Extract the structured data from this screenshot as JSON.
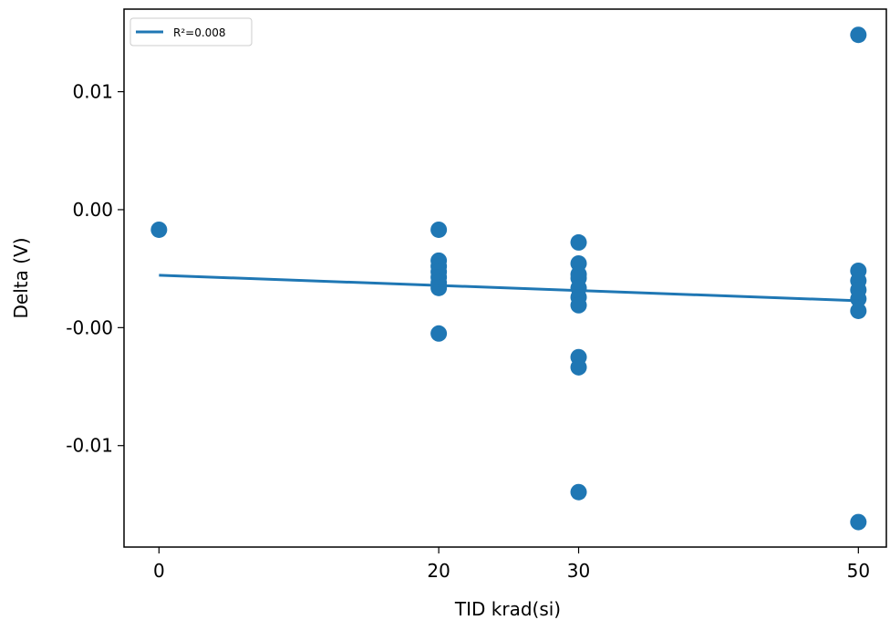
{
  "chart_data": {
    "type": "scatter",
    "xlabel": "TID krad(si)",
    "ylabel": "Delta (V)",
    "xlim": [
      -2.5,
      52
    ],
    "ylim": [
      -0.0143,
      0.0085
    ],
    "xticks": [
      0,
      20,
      30,
      50
    ],
    "yticks": [
      {
        "value": 0.005,
        "label": "0.01"
      },
      {
        "value": 0,
        "label": "0.00"
      },
      {
        "value": -0.005,
        "label": "-0.00"
      },
      {
        "value": -0.01,
        "label": "-0.01"
      }
    ],
    "points": {
      "color": "#1f77b4",
      "x": [
        0,
        20,
        20,
        20,
        20,
        20,
        20,
        20,
        20,
        30,
        30,
        30,
        30,
        30,
        30,
        30,
        30,
        30,
        30,
        50,
        50,
        50,
        50,
        50,
        50,
        50
      ],
      "values": [
        -0.00085,
        -0.00085,
        -0.00216,
        -0.0024,
        -0.00263,
        -0.00286,
        -0.00309,
        -0.00332,
        -0.00525,
        -0.00139,
        -0.00228,
        -0.00274,
        -0.0029,
        -0.00332,
        -0.00371,
        -0.00405,
        -0.00625,
        -0.00668,
        -0.01197,
        0.00741,
        -0.00259,
        -0.00301,
        -0.0034,
        -0.00378,
        -0.00429,
        -0.01324
      ]
    },
    "fit": {
      "name": "R²=0.008",
      "color": "#1f77b4",
      "x": [
        0,
        50
      ],
      "values": [
        -0.00278,
        -0.00386
      ]
    },
    "legend": "upper left"
  }
}
